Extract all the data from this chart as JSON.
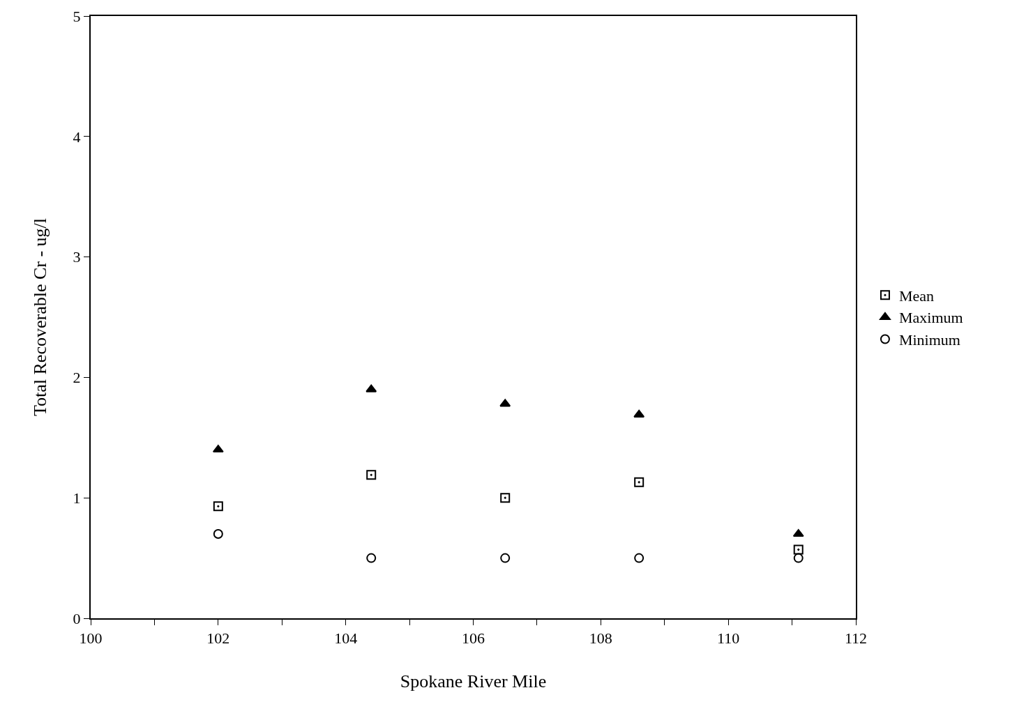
{
  "chart_data": {
    "type": "scatter",
    "xlabel": "Spokane River Mile",
    "ylabel": "Total Recoverable Cr - ug/l",
    "x": [
      102.0,
      104.4,
      106.5,
      108.6,
      111.1
    ],
    "series": [
      {
        "name": "Mean",
        "color": "#000000",
        "marker": "square",
        "values": [
          0.93,
          1.19,
          1.0,
          1.13,
          0.57
        ]
      },
      {
        "name": "Maximum",
        "color": "#000000",
        "marker": "triangle",
        "values": [
          1.4,
          1.9,
          1.78,
          1.69,
          0.7
        ]
      },
      {
        "name": "Minimum",
        "color": "#000000",
        "marker": "circle",
        "values": [
          0.7,
          0.5,
          0.5,
          0.5,
          0.5
        ]
      }
    ],
    "xlim": [
      100,
      112
    ],
    "xticks": [
      100,
      {
        "value": 101,
        "label": null
      },
      102,
      {
        "value": 103,
        "label": null
      },
      104,
      {
        "value": 105,
        "label": null
      },
      106,
      {
        "value": 107,
        "label": null
      },
      108,
      {
        "value": 109,
        "label": null
      },
      110,
      {
        "value": 111,
        "label": null
      },
      112
    ],
    "ylim": [
      0,
      5
    ],
    "yticks": [
      0,
      1,
      2,
      3,
      4,
      5
    ],
    "legend": "right"
  }
}
